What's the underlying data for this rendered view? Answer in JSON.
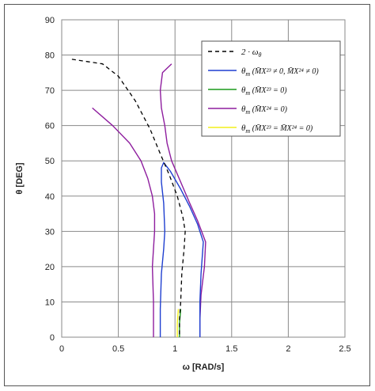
{
  "chart_data": {
    "type": "line",
    "title": "",
    "xlabel": "ω [RAD/s]",
    "ylabel": "θ [DEG]",
    "xlim": [
      0,
      2.5
    ],
    "ylim": [
      0,
      90
    ],
    "xticks": [
      "0",
      "0.5",
      "1",
      "1.5",
      "2",
      "2.5"
    ],
    "yticks": [
      "0",
      "10",
      "20",
      "30",
      "40",
      "50",
      "60",
      "70",
      "80",
      "90"
    ],
    "grid": true,
    "legend_position": "top-right",
    "series": [
      {
        "name": "2 · ωθ",
        "color": "#000000",
        "style": "dashed",
        "points": [
          [
            0.09,
            78.8
          ],
          [
            0.36,
            77.5
          ],
          [
            0.5,
            74
          ],
          [
            0.65,
            67
          ],
          [
            0.78,
            59
          ],
          [
            0.87,
            52
          ],
          [
            0.95,
            46
          ],
          [
            1.02,
            40
          ],
          [
            1.07,
            34
          ],
          [
            1.09,
            30
          ],
          [
            1.08,
            25
          ],
          [
            1.06,
            18
          ],
          [
            1.05,
            10
          ],
          [
            1.04,
            5
          ],
          [
            1.04,
            0
          ]
        ]
      },
      {
        "name": "θm (M̄X23 ≠ 0, M̄X24 ≠ 0)",
        "color": "#1f3fd0",
        "style": "solid",
        "points": [
          [
            0.87,
            0
          ],
          [
            0.87,
            8
          ],
          [
            0.88,
            18
          ],
          [
            0.9,
            25
          ],
          [
            0.91,
            30
          ],
          [
            0.9,
            38
          ],
          [
            0.88,
            44
          ],
          [
            0.88,
            48
          ],
          [
            0.9,
            49.5
          ],
          [
            0.96,
            47
          ],
          [
            1.05,
            42
          ],
          [
            1.13,
            37
          ],
          [
            1.2,
            32
          ],
          [
            1.25,
            27
          ],
          [
            1.23,
            18
          ],
          [
            1.22,
            10
          ],
          [
            1.22,
            0
          ]
        ]
      },
      {
        "name": "θm (M̄X23 = 0)",
        "color": "#1a9a1a",
        "style": "solid",
        "points": [
          [
            1.04,
            0
          ],
          [
            1.04,
            4
          ],
          [
            1.05,
            8
          ]
        ]
      },
      {
        "name": "θm (M̄X24 = 0)",
        "color": "#8e1d9e",
        "style": "solid",
        "points": [
          [
            0.27,
            65
          ],
          [
            0.45,
            60
          ],
          [
            0.6,
            55
          ],
          [
            0.7,
            50
          ],
          [
            0.76,
            45
          ],
          [
            0.8,
            40
          ],
          [
            0.82,
            35
          ],
          [
            0.82,
            30
          ],
          [
            0.81,
            25
          ],
          [
            0.8,
            20
          ],
          [
            0.81,
            10
          ],
          [
            0.81,
            0
          ],
          null,
          [
            0.97,
            77.5
          ],
          [
            0.89,
            75
          ],
          [
            0.87,
            70
          ],
          [
            0.88,
            65
          ],
          [
            0.91,
            60
          ],
          [
            0.93,
            55
          ],
          [
            0.97,
            50
          ],
          [
            1.05,
            44
          ],
          [
            1.13,
            38
          ],
          [
            1.2,
            33
          ],
          [
            1.27,
            27
          ],
          [
            1.26,
            20
          ],
          [
            1.23,
            12
          ],
          [
            1.22,
            5
          ],
          [
            1.22,
            0
          ]
        ]
      },
      {
        "name": "θm (M̄X23 = M̄X24 = 0)",
        "color": "#f2ef1a",
        "style": "solid",
        "points": [
          [
            1.02,
            0
          ],
          [
            1.02,
            4
          ],
          [
            1.03,
            8
          ]
        ]
      }
    ]
  },
  "legend": [
    {
      "prefix": "2 · ω",
      "sub": "θ",
      "rest": ""
    },
    {
      "prefix": "θ",
      "sub": "m",
      "rest": " (M̄X²³ ≠ 0, M̄X²⁴ ≠ 0)"
    },
    {
      "prefix": "θ",
      "sub": "m",
      "rest": " (M̄X²³ = 0)"
    },
    {
      "prefix": "θ",
      "sub": "m",
      "rest": " (M̄X²⁴ = 0)"
    },
    {
      "prefix": "θ",
      "sub": "m",
      "rest": " (M̄X²³ = M̄X²⁴ = 0)"
    }
  ]
}
